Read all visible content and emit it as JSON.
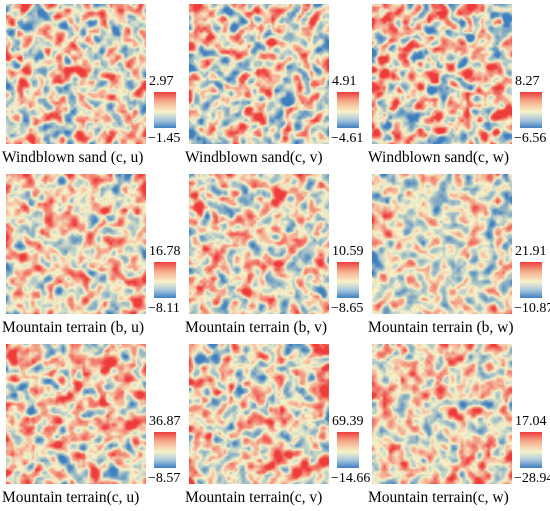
{
  "panels": [
    {
      "caption": "Windblown sand (c, u)",
      "cmax": "2.97",
      "cmin": "−1.45"
    },
    {
      "caption": "Windblown sand(c, v)",
      "cmax": "4.91",
      "cmin": "−4.61"
    },
    {
      "caption": "Windblown sand(c, w)",
      "cmax": "8.27",
      "cmin": "−6.56"
    },
    {
      "caption": "Mountain terrain (b, u)",
      "cmax": "16.78",
      "cmin": "−8.11"
    },
    {
      "caption": "Mountain terrain (b, v)",
      "cmax": "10.59",
      "cmin": "−8.65"
    },
    {
      "caption": "Mountain terrain (b, w)",
      "cmax": "21.91",
      "cmin": "−10.87"
    },
    {
      "caption": "Mountain terrain(c, u)",
      "cmax": "36.87",
      "cmin": "−8.57"
    },
    {
      "caption": "Mountain terrain(c, v)",
      "cmax": "69.39",
      "cmin": "−14.66"
    },
    {
      "caption": "Mountain terrain(c, w)",
      "cmax": "17.04",
      "cmin": "−28.94"
    }
  ],
  "colors": {
    "high": "#ee3b3b",
    "mid": "#f7f3c9",
    "low": "#3f7fc0"
  }
}
